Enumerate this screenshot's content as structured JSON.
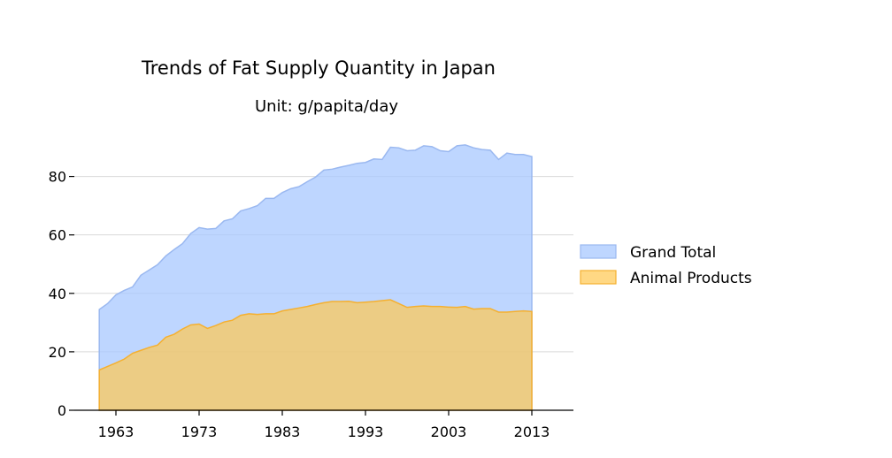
{
  "chart_data": {
    "type": "area",
    "title": "Trends of Fat Supply Quantity in Japan",
    "subtitle": "Unit: g/papita/day",
    "xlabel": "",
    "ylabel": "",
    "xlim": [
      1958,
      2018
    ],
    "ylim": [
      0,
      95
    ],
    "x_ticks": [
      1963,
      1973,
      1983,
      1993,
      2003,
      2013
    ],
    "y_ticks": [
      0,
      20,
      40,
      60,
      80
    ],
    "grid": "horizontal",
    "legend_position": "right",
    "x": [
      1961,
      1962,
      1963,
      1964,
      1965,
      1966,
      1967,
      1968,
      1969,
      1970,
      1971,
      1972,
      1973,
      1974,
      1975,
      1976,
      1977,
      1978,
      1979,
      1980,
      1981,
      1982,
      1983,
      1984,
      1985,
      1986,
      1987,
      1988,
      1989,
      1990,
      1991,
      1992,
      1993,
      1994,
      1995,
      1996,
      1997,
      1998,
      1999,
      2000,
      2001,
      2002,
      2003,
      2004,
      2005,
      2006,
      2007,
      2008,
      2009,
      2010,
      2011,
      2012,
      2013
    ],
    "series": [
      {
        "name": "Grand Total",
        "color": "#a8c8ff",
        "edge": "#9ab8f0",
        "values": [
          34.5,
          36.5,
          39.5,
          41.0,
          42.2,
          46.2,
          48.0,
          49.8,
          52.8,
          55.0,
          57.0,
          60.5,
          62.5,
          62.0,
          62.2,
          64.8,
          65.5,
          68.2,
          69.0,
          70.0,
          72.5,
          72.5,
          74.5,
          75.8,
          76.5,
          78.2,
          79.8,
          82.2,
          82.5,
          83.2,
          83.8,
          84.5,
          84.8,
          86.0,
          85.8,
          90.0,
          89.8,
          88.8,
          89.0,
          90.5,
          90.2,
          88.8,
          88.5,
          90.5,
          90.8,
          89.8,
          89.2,
          89.0,
          85.8,
          88.0,
          87.5,
          87.5,
          86.8
        ]
      },
      {
        "name": "Animal Products",
        "color": "#ffc850",
        "edge": "#f5b030",
        "values": [
          13.8,
          15.0,
          16.2,
          17.5,
          19.5,
          20.5,
          21.5,
          22.3,
          25.0,
          26.0,
          27.8,
          29.2,
          29.5,
          28.0,
          29.0,
          30.2,
          30.8,
          32.5,
          33.0,
          32.8,
          33.0,
          33.0,
          34.0,
          34.5,
          35.0,
          35.5,
          36.2,
          36.8,
          37.2,
          37.2,
          37.3,
          36.8,
          37.0,
          37.2,
          37.5,
          37.8,
          36.5,
          35.2,
          35.5,
          35.7,
          35.5,
          35.5,
          35.3,
          35.2,
          35.5,
          34.6,
          34.8,
          34.8,
          33.6,
          33.6,
          33.8,
          34.0,
          33.8
        ]
      }
    ]
  }
}
